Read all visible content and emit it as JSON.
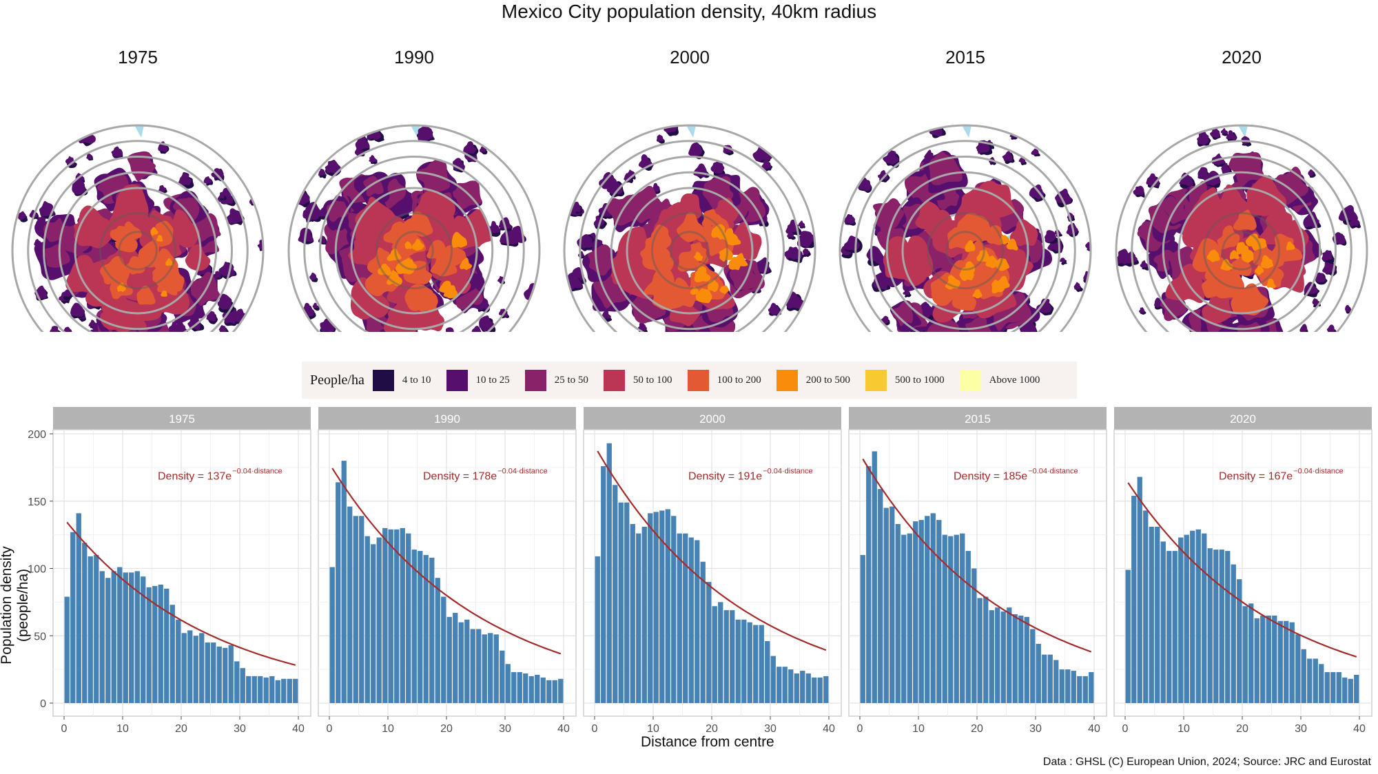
{
  "title": "Mexico City population density, 40km radius",
  "maps": [
    {
      "year": "1975"
    },
    {
      "year": "1990"
    },
    {
      "year": "2000"
    },
    {
      "year": "2015"
    },
    {
      "year": "2020"
    }
  ],
  "legend": {
    "title": "People/ha",
    "items": [
      {
        "label": "4 to 10",
        "color": "#200d45"
      },
      {
        "label": "10 to 25",
        "color": "#560f6d"
      },
      {
        "label": "25 to 50",
        "color": "#8a2269"
      },
      {
        "label": "50 to 100",
        "color": "#ba3654"
      },
      {
        "label": "100 to 200",
        "color": "#e35933"
      },
      {
        "label": "200 to 500",
        "color": "#f98c0a"
      },
      {
        "label": "500 to 1000",
        "color": "#f9c932"
      },
      {
        "label": "Above 1000",
        "color": "#fcffa4"
      }
    ]
  },
  "colors": {
    "bar": "#4682b4",
    "fit_line": "#a52a2a",
    "strip": "#b3b3b3",
    "water": "#aadbe8"
  },
  "chart_data": {
    "type": "bar",
    "xlabel": "Distance from centre",
    "ylabel": "Population density (people/ha)",
    "xlim": [
      0,
      40
    ],
    "ylim": [
      0,
      200
    ],
    "x_ticks": [
      "0",
      "10",
      "20",
      "30",
      "40"
    ],
    "y_ticks": [
      "0",
      "50",
      "100",
      "150",
      "200"
    ],
    "x": [
      0.5,
      1.5,
      2.5,
      3.5,
      4.5,
      5.5,
      6.5,
      7.5,
      8.5,
      9.5,
      10.5,
      11.5,
      12.5,
      13.5,
      14.5,
      15.5,
      16.5,
      17.5,
      18.5,
      19.5,
      20.5,
      21.5,
      22.5,
      23.5,
      24.5,
      25.5,
      26.5,
      27.5,
      28.5,
      29.5,
      30.5,
      31.5,
      32.5,
      33.5,
      34.5,
      35.5,
      36.5,
      37.5,
      38.5,
      39.5
    ],
    "panels": [
      {
        "name": "1975",
        "fit_label": "Density = 137e",
        "fit_exponent": "−0.04·distance",
        "fit_a": 137,
        "fit_b": -0.04,
        "values": [
          79,
          127,
          141,
          119,
          109,
          110,
          98,
          93,
          98,
          101,
          97,
          97,
          98,
          94,
          86,
          87,
          88,
          85,
          73,
          62,
          52,
          54,
          50,
          52,
          45,
          45,
          42,
          41,
          43,
          31,
          26,
          20,
          20,
          20,
          19,
          20,
          17,
          18,
          18,
          18
        ]
      },
      {
        "name": "1990",
        "fit_label": "Density = 178e",
        "fit_exponent": "−0.04·distance",
        "fit_a": 178,
        "fit_b": -0.04,
        "values": [
          101,
          164,
          180,
          146,
          139,
          139,
          124,
          118,
          123,
          130,
          129,
          129,
          130,
          126,
          114,
          113,
          110,
          108,
          93,
          79,
          64,
          67,
          60,
          62,
          55,
          55,
          51,
          52,
          51,
          39,
          29,
          23,
          23,
          22,
          20,
          21,
          19,
          17,
          17,
          18
        ]
      },
      {
        "name": "2000",
        "fit_label": "Density = 191e",
        "fit_exponent": "−0.04·distance",
        "fit_a": 191,
        "fit_b": -0.04,
        "values": [
          109,
          176,
          193,
          162,
          149,
          149,
          133,
          126,
          131,
          141,
          142,
          143,
          144,
          139,
          126,
          126,
          123,
          121,
          105,
          90,
          72,
          75,
          69,
          69,
          62,
          62,
          60,
          58,
          58,
          46,
          35,
          27,
          27,
          25,
          22,
          24,
          22,
          19,
          19,
          20
        ]
      },
      {
        "name": "2015",
        "fit_label": "Density = 185e",
        "fit_exponent": "−0.04·distance",
        "fit_a": 185,
        "fit_b": -0.04,
        "values": [
          110,
          176,
          187,
          159,
          145,
          146,
          133,
          125,
          126,
          135,
          136,
          139,
          141,
          136,
          125,
          124,
          125,
          126,
          113,
          100,
          78,
          79,
          69,
          71,
          68,
          71,
          66,
          65,
          64,
          55,
          44,
          36,
          36,
          32,
          25,
          25,
          24,
          20,
          20,
          23
        ]
      },
      {
        "name": "2020",
        "fit_label": "Density = 167e",
        "fit_exponent": "−0.04·distance",
        "fit_a": 167,
        "fit_b": -0.04,
        "values": [
          99,
          154,
          168,
          143,
          131,
          131,
          120,
          113,
          113,
          123,
          125,
          128,
          129,
          126,
          115,
          114,
          114,
          113,
          103,
          92,
          72,
          74,
          63,
          65,
          65,
          65,
          61,
          61,
          60,
          51,
          40,
          33,
          33,
          29,
          23,
          23,
          23,
          19,
          18,
          21
        ]
      }
    ]
  },
  "footer": "Data : GHSL (C) European Union, 2024; Source: JRC and Eurostat"
}
